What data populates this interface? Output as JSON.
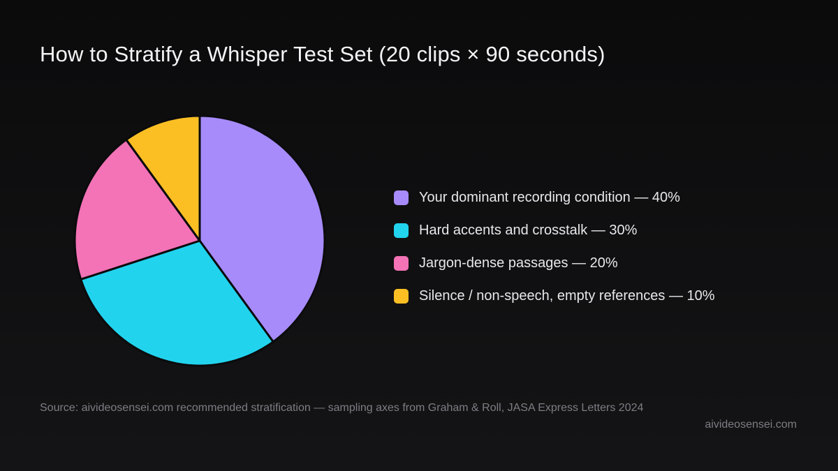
{
  "title": "How to Stratify  a Whisper Test Set (20 clips × 90 seconds)",
  "chart_data": {
    "type": "pie",
    "title": "How to Stratify  a Whisper Test Set (20 clips × 90 seconds)",
    "start_angle": "12 o'clock, clockwise",
    "legend_position": "right",
    "slices": [
      {
        "label": "Your dominant recording condition — 40%",
        "value": 40,
        "color": "#a78bfa"
      },
      {
        "label": "Hard accents and crosstalk  — 30%",
        "value": 30,
        "color": "#22d3ee"
      },
      {
        "label": "Jargon-dense passages — 20%",
        "value": 20,
        "color": "#f472b6"
      },
      {
        "label": "Silence / non-speech, empty references  — 10%",
        "value": 10,
        "color": "#fbbf24"
      }
    ]
  },
  "footer": {
    "source": "Source: aivideosensei.com  recommended  stratification  — sampling axes  from Graham & Roll, JASA Express Letters 2024",
    "site": "aivideosensei.com"
  },
  "colors": {
    "background": "#0f0f11",
    "slice_border": "#0b0b0d"
  }
}
